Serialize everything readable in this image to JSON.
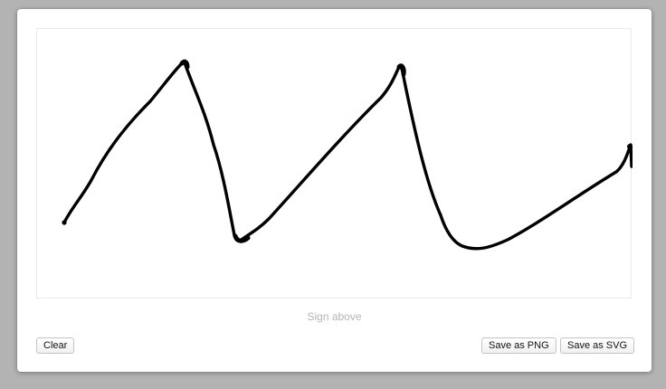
{
  "signature_pad": {
    "hint": "Sign above",
    "stroke_color": "#000000",
    "background_color": "#ffffff"
  },
  "actions": {
    "clear_label": "Clear",
    "save_png_label": "Save as PNG",
    "save_svg_label": "Save as SVG"
  }
}
